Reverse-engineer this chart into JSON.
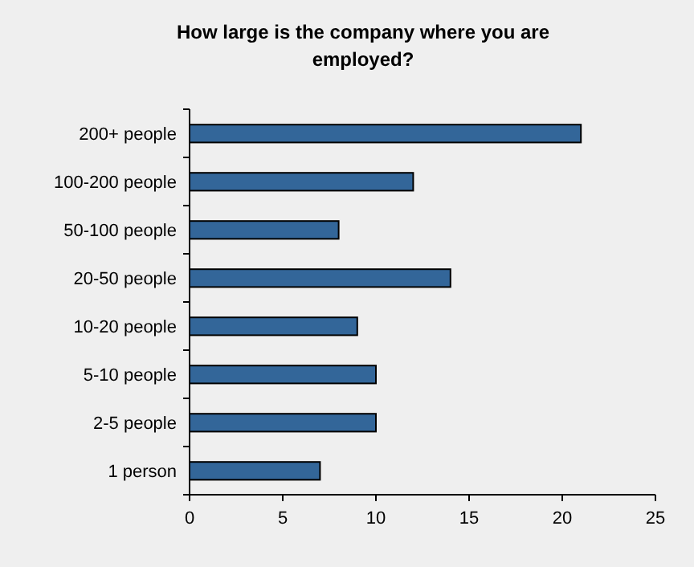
{
  "chart_data": {
    "type": "bar",
    "orientation": "horizontal",
    "title": "How large is the company where you are employed?",
    "categories": [
      "200+ people",
      "100-200 people",
      "50-100 people",
      "20-50 people",
      "10-20 people",
      "5-10 people",
      "2-5 people",
      "1 person"
    ],
    "values": [
      21,
      12,
      8,
      14,
      9,
      10,
      10,
      7
    ],
    "color": "#336699",
    "xlim": [
      0,
      25
    ],
    "xticks": [
      0,
      5,
      10,
      15,
      20,
      25
    ],
    "grid": false
  }
}
